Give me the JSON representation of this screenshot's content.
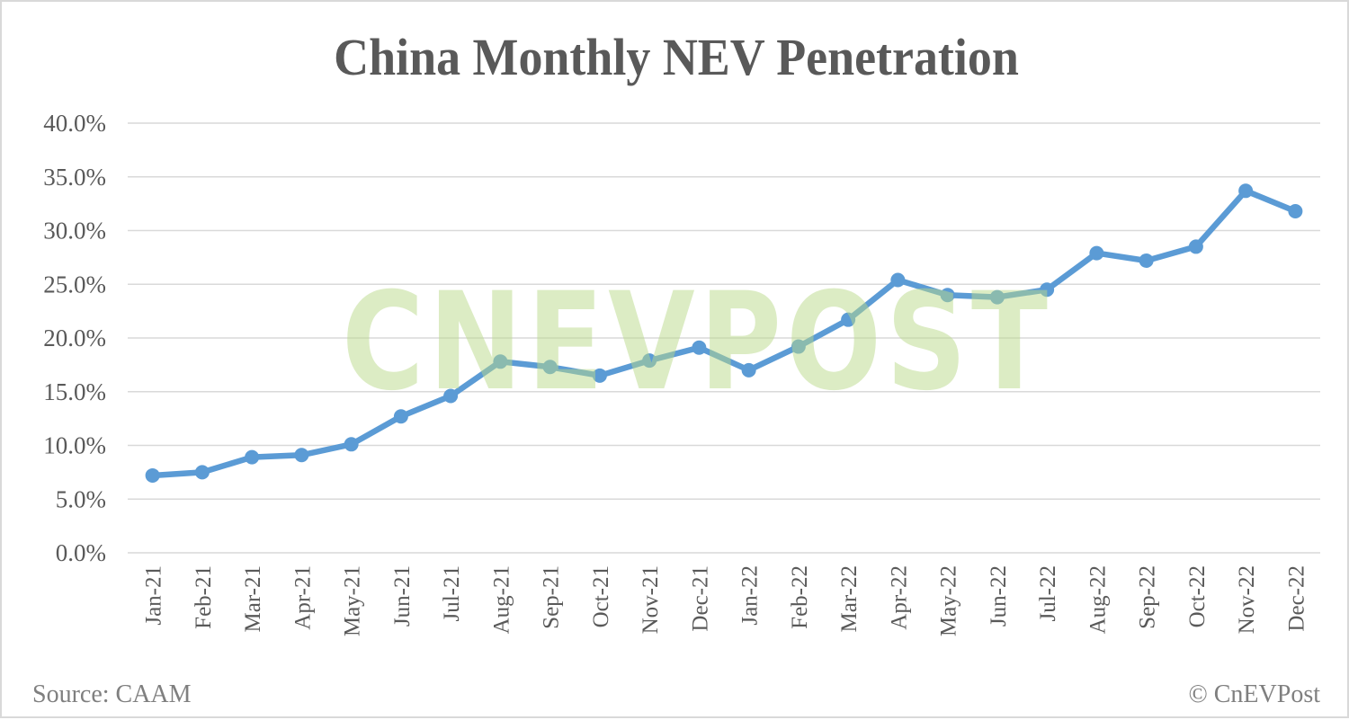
{
  "title": "China Monthly NEV Penetration",
  "footer": {
    "source": "Source: CAAM",
    "copyright": "© CnEVPost"
  },
  "watermark": "CNEVPOST",
  "colors": {
    "line": "#5b9bd5",
    "grid": "#d9d9d9",
    "text": "#595959",
    "watermark": "#b9d98a"
  },
  "chart_data": {
    "type": "line",
    "title": "China Monthly NEV Penetration",
    "xlabel": "",
    "ylabel": "",
    "ylim": [
      0,
      40
    ],
    "yticks": [
      "0.0%",
      "5.0%",
      "10.0%",
      "15.0%",
      "20.0%",
      "25.0%",
      "30.0%",
      "35.0%",
      "40.0%"
    ],
    "grid": true,
    "legend": null,
    "categories": [
      "Jan-21",
      "Feb-21",
      "Mar-21",
      "Apr-21",
      "May-21",
      "Jun-21",
      "Jul-21",
      "Aug-21",
      "Sep-21",
      "Oct-21",
      "Nov-21",
      "Dec-21",
      "Jan-22",
      "Feb-22",
      "Mar-22",
      "Apr-22",
      "May-22",
      "Jun-22",
      "Jul-22",
      "Aug-22",
      "Sep-22",
      "Oct-22",
      "Nov-22",
      "Dec-22"
    ],
    "series": [
      {
        "name": "NEV Penetration",
        "values": [
          7.2,
          7.5,
          8.9,
          9.1,
          10.1,
          12.7,
          14.6,
          17.8,
          17.3,
          16.5,
          17.9,
          19.1,
          17.0,
          19.2,
          21.7,
          25.4,
          24.0,
          23.8,
          24.5,
          27.9,
          27.2,
          28.5,
          33.7,
          31.8
        ]
      }
    ],
    "annotations": [
      "Source: CAAM",
      "© CnEVPost"
    ]
  }
}
